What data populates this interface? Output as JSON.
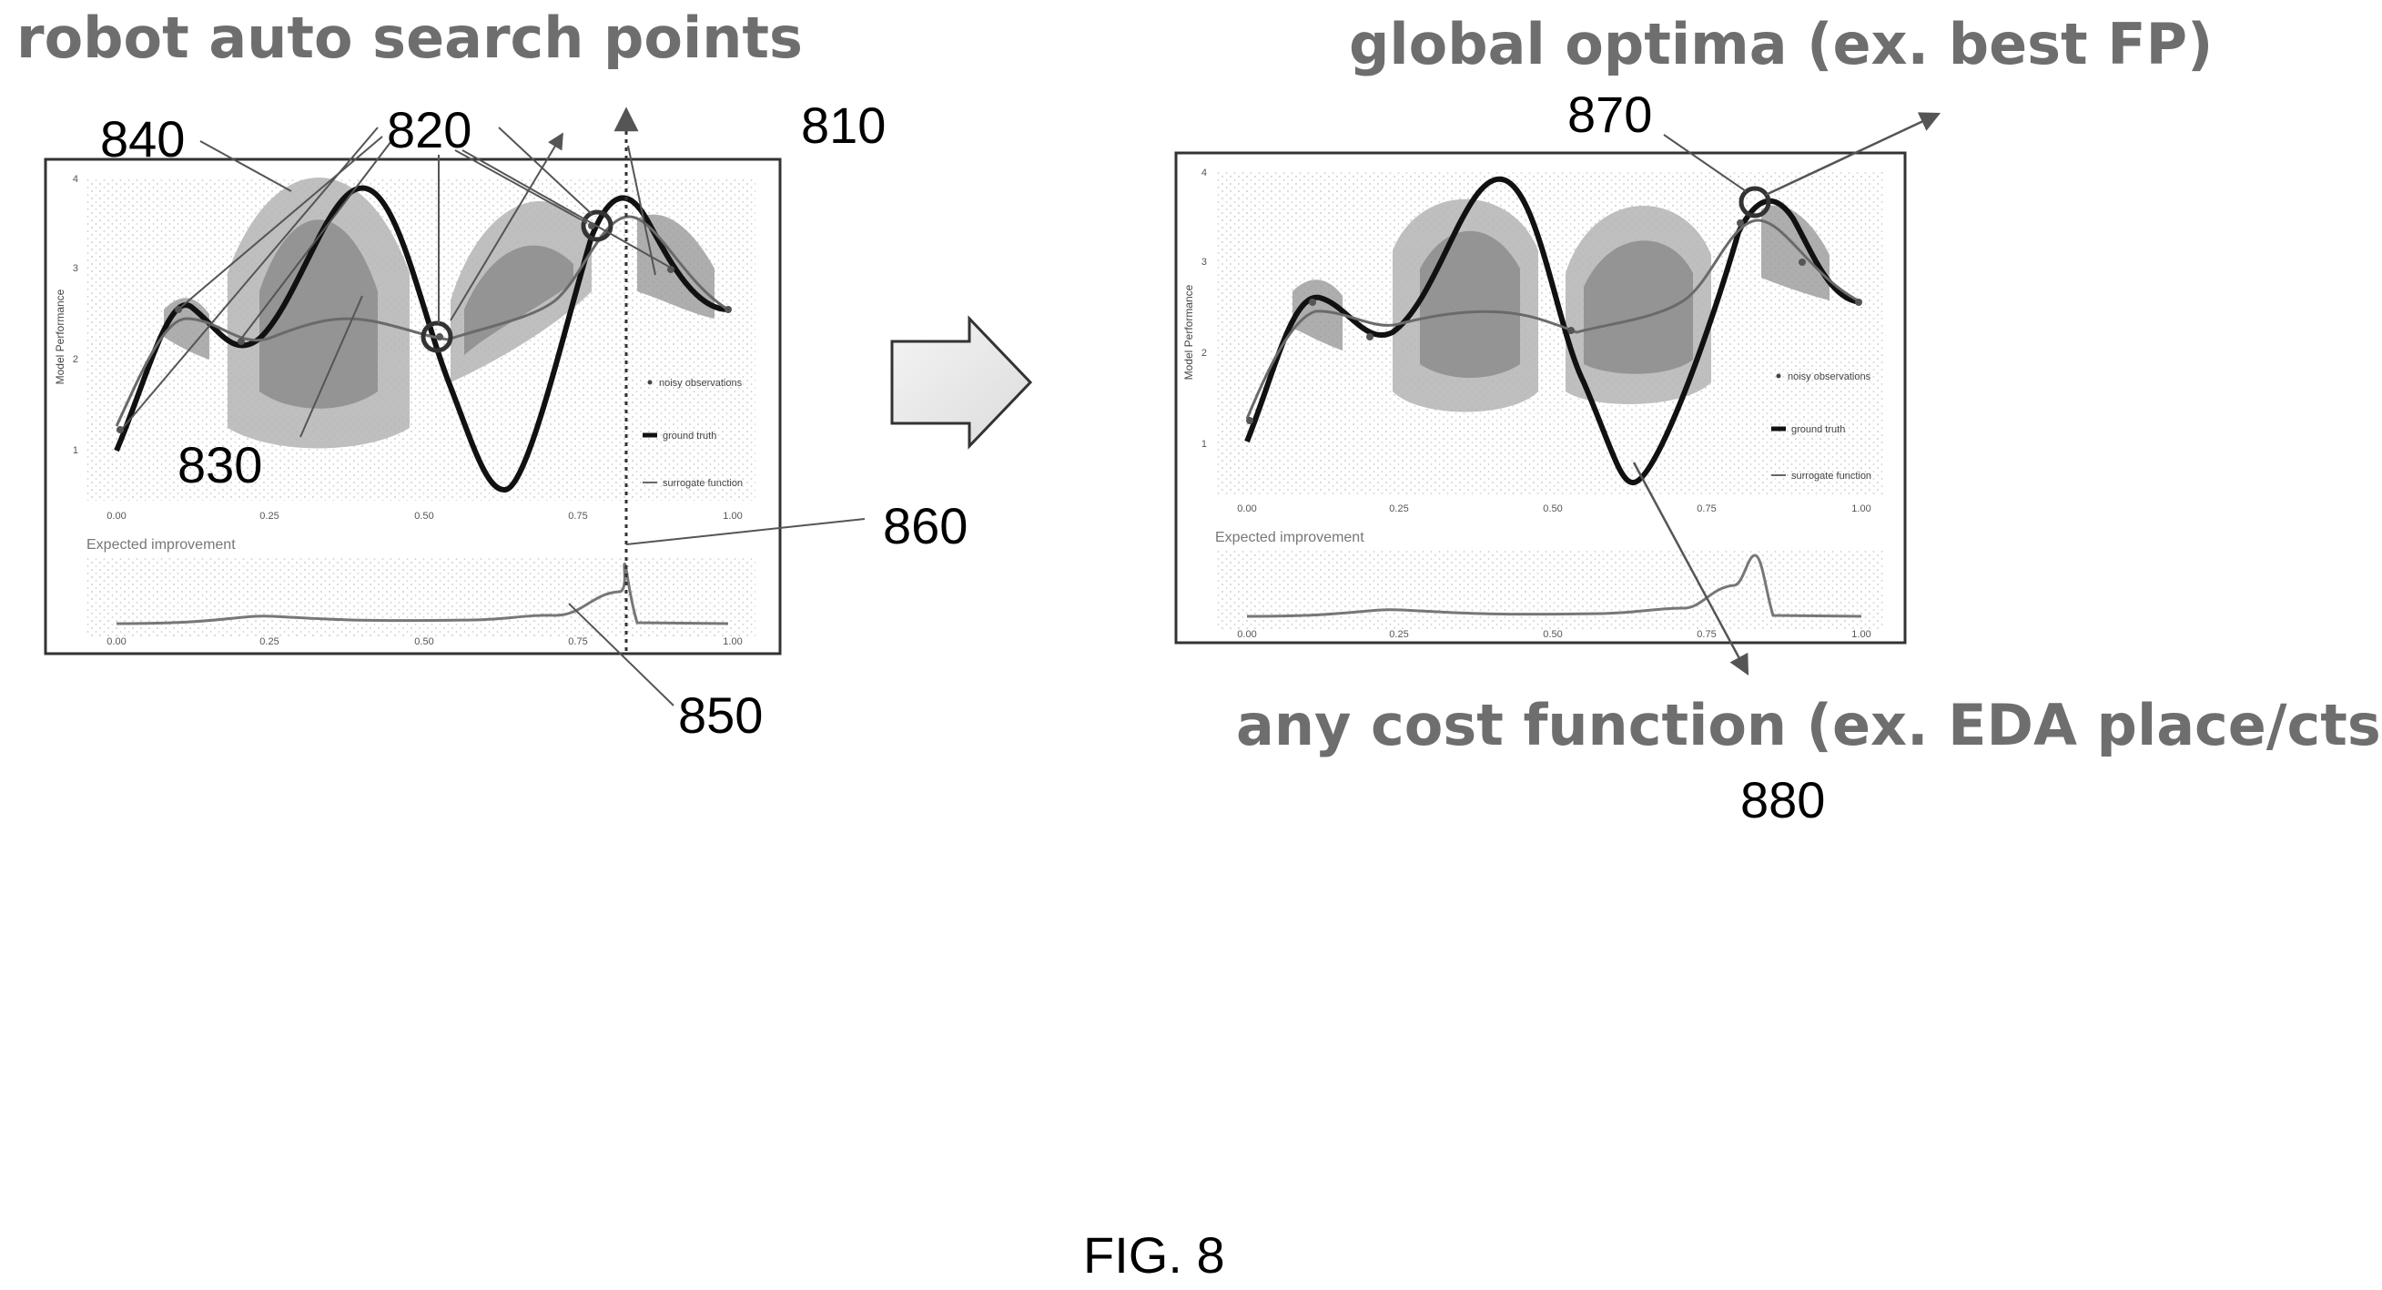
{
  "headings": {
    "left": "robot auto search points",
    "right_top": "global optima (ex. best FP)",
    "right_bottom": "any cost function (ex. EDA place/cts)"
  },
  "reference_numerals": {
    "r840": "840",
    "r820": "820",
    "r810": "810",
    "r830": "830",
    "r860": "860",
    "r850": "850",
    "r870": "870",
    "r880": "880"
  },
  "panel": {
    "y_axis_label": "Model Performance",
    "y_ticks": [
      "1",
      "2",
      "3",
      "4"
    ],
    "x_ticks": [
      "0.00",
      "0.25",
      "0.50",
      "0.75",
      "1.00"
    ],
    "legend": {
      "noisy": "noisy observations",
      "truth": "ground truth",
      "surrogate": "surrogate function"
    },
    "ei_label": "Expected improvement"
  },
  "caption": "FIG. 8",
  "colors": {
    "heading": "#6e6e6e",
    "band_dark": "#8a8a8a",
    "band_light": "#b4b4b4",
    "truth": "#111111",
    "surrogate": "#6a6a6a"
  }
}
